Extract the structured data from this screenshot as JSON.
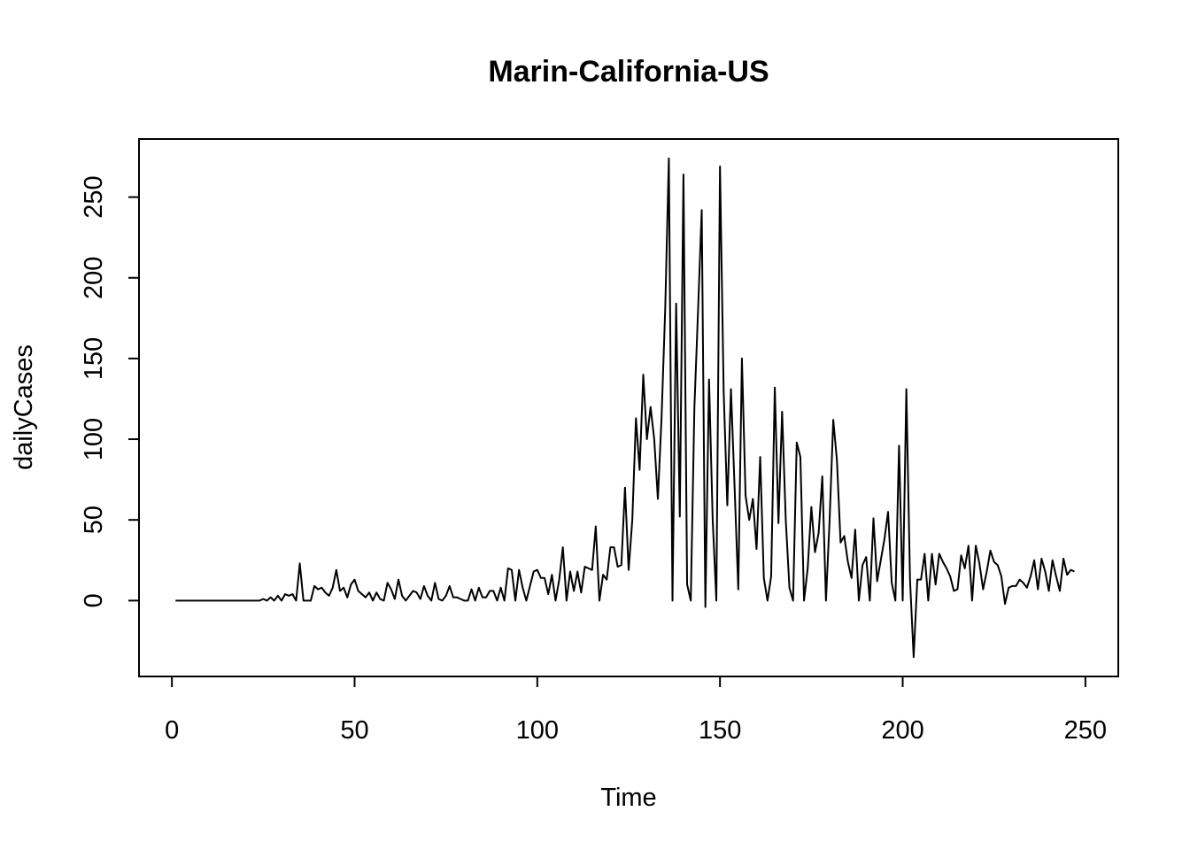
{
  "chart_data": {
    "type": "line",
    "title": "Marin-California-US",
    "xlabel": "Time",
    "ylabel": "dailyCases",
    "xlim": [
      -9,
      259
    ],
    "ylim": [
      -47,
      286
    ],
    "xticks": [
      0,
      50,
      100,
      150,
      200,
      250
    ],
    "yticks": [
      0,
      50,
      100,
      150,
      200,
      250
    ],
    "grid": false,
    "series": [
      {
        "values": [
          0,
          0,
          0,
          0,
          0,
          0,
          0,
          0,
          0,
          0,
          0,
          0,
          0,
          0,
          0,
          0,
          0,
          0,
          0,
          0,
          0,
          0,
          0,
          0,
          1,
          0,
          2,
          0,
          3,
          0,
          4,
          3,
          4,
          0,
          23,
          0,
          0,
          0,
          9,
          7,
          8,
          5,
          3,
          8,
          19,
          6,
          8,
          2,
          10,
          13,
          6,
          4,
          2,
          5,
          0,
          5,
          1,
          0,
          11,
          7,
          1,
          13,
          3,
          0,
          3,
          6,
          5,
          1,
          9,
          3,
          0,
          11,
          1,
          0,
          3,
          9,
          2,
          2,
          1,
          0,
          0,
          7,
          0,
          8,
          2,
          2,
          6,
          6,
          0,
          8,
          0,
          20,
          19,
          0,
          19,
          8,
          0,
          9,
          18,
          19,
          14,
          14,
          4,
          16,
          0,
          13,
          33,
          0,
          18,
          6,
          18,
          5,
          21,
          20,
          19,
          46,
          0,
          16,
          13,
          33,
          33,
          21,
          22,
          70,
          19,
          50,
          113,
          81,
          140,
          100,
          120,
          100,
          63,
          113,
          180,
          274,
          0,
          184,
          52,
          264,
          10,
          0,
          120,
          180,
          242,
          -4,
          137,
          50,
          0,
          269,
          130,
          59,
          131,
          70,
          7,
          150,
          65,
          50,
          63,
          32,
          89,
          14,
          0,
          15,
          132,
          48,
          117,
          50,
          8,
          0,
          98,
          89,
          0,
          20,
          58,
          30,
          42,
          77,
          0,
          50,
          112,
          87,
          36,
          40,
          24,
          14,
          44,
          0,
          22,
          27,
          0,
          51,
          12,
          25,
          38,
          55,
          11,
          0,
          96,
          0,
          131,
          13,
          -35,
          13,
          13,
          29,
          0,
          29,
          10,
          29,
          24,
          20,
          15,
          6,
          7,
          28,
          20,
          34,
          0,
          34,
          23,
          7,
          18,
          31,
          24,
          22,
          15,
          -2,
          8,
          9,
          9,
          13,
          11,
          8,
          15,
          25,
          7,
          26,
          18,
          6,
          25,
          15,
          6,
          26,
          16,
          19,
          18
        ]
      }
    ]
  }
}
